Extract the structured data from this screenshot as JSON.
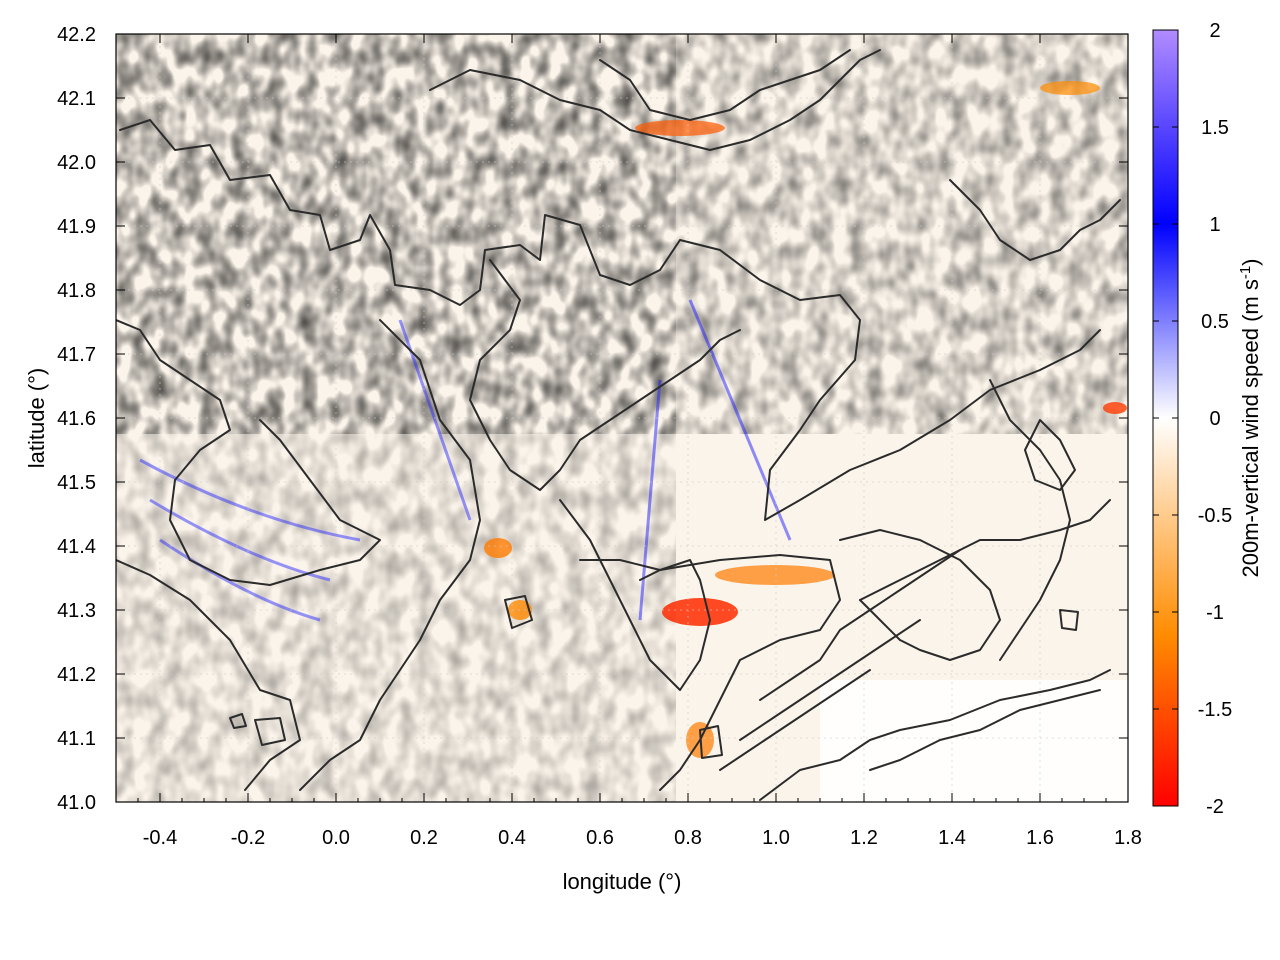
{
  "chart_data": {
    "type": "heatmap",
    "title": "",
    "xlabel": "longitude (°)",
    "ylabel": "latitude (°)",
    "xlim": [
      -0.5,
      1.8
    ],
    "ylim": [
      41.0,
      42.2
    ],
    "x_ticks": [
      "-0.4",
      "-0.2",
      "0.0",
      "0.2",
      "0.4",
      "0.6",
      "0.8",
      "1.0",
      "1.2",
      "1.4",
      "1.6",
      "1.8"
    ],
    "y_ticks": [
      "41.0",
      "41.1",
      "41.2",
      "41.3",
      "41.4",
      "41.5",
      "41.6",
      "41.7",
      "41.8",
      "41.9",
      "42.0",
      "42.1",
      "42.2"
    ],
    "colorbar": {
      "label_main": "200m-vertical wind speed (m s",
      "label_sup": "-1",
      "label_end": ")",
      "range": [
        -2,
        2
      ],
      "ticks": [
        "2",
        "1.5",
        "1",
        "0.5",
        "0",
        "-0.5",
        "-1",
        "-1.5",
        "-2"
      ],
      "colors": [
        "#ff0000",
        "#ff8c00",
        "#ffffff",
        "#0000ff",
        "#b18cff"
      ]
    },
    "grid": true,
    "contours": "black lines (terrain elevation)"
  }
}
